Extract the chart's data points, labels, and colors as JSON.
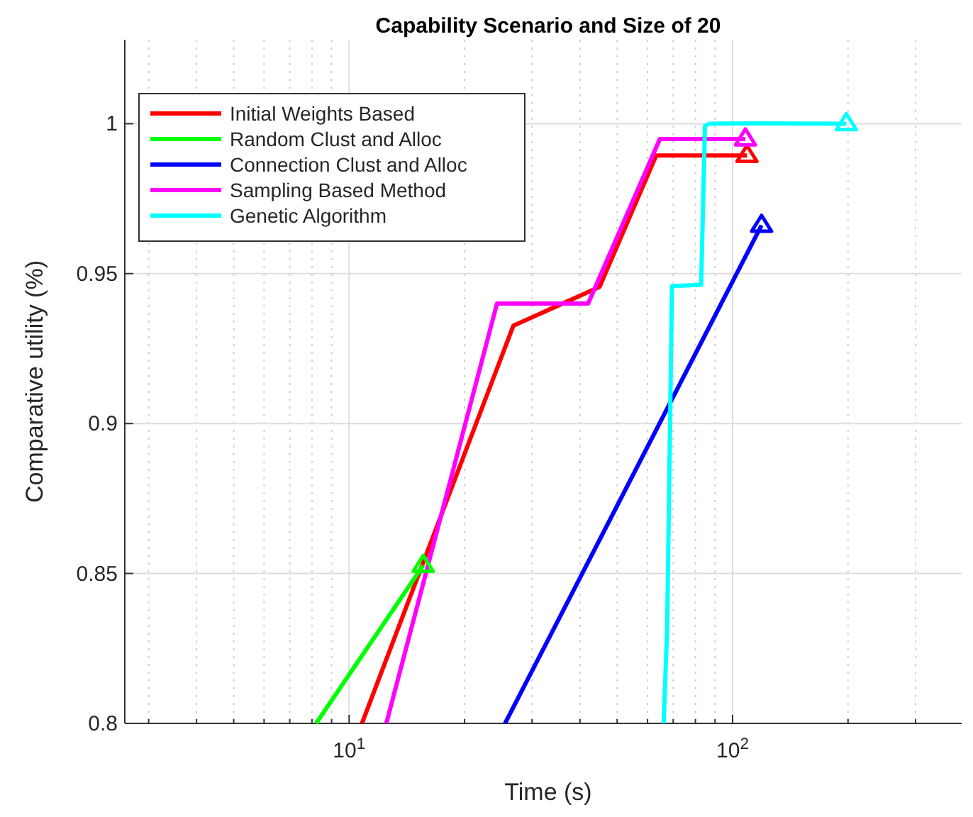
{
  "chart_data": {
    "type": "line",
    "title": "Capability Scenario and Size of 20",
    "xlabel": "Time (s)",
    "ylabel": "Comparative utility (%)",
    "log": "x",
    "xlim": [
      2.6,
      420
    ],
    "ylim": [
      0.8,
      1.028
    ],
    "xticks": [
      {
        "value": 3,
        "label": null
      },
      {
        "value": 4,
        "label": null
      },
      {
        "value": 5,
        "label": null
      },
      {
        "value": 6,
        "label": null
      },
      {
        "value": 7,
        "label": null
      },
      {
        "value": 8,
        "label": null
      },
      {
        "value": 9,
        "label": null
      },
      {
        "value": 10,
        "label": "10$^{1}$"
      },
      {
        "value": 20,
        "label": null
      },
      {
        "value": 30,
        "label": null
      },
      {
        "value": 40,
        "label": null
      },
      {
        "value": 50,
        "label": null
      },
      {
        "value": 60,
        "label": null
      },
      {
        "value": 70,
        "label": null
      },
      {
        "value": 80,
        "label": null
      },
      {
        "value": 90,
        "label": null
      },
      {
        "value": 100,
        "label": "10$^{2}$"
      },
      {
        "value": 200,
        "label": null
      },
      {
        "value": 300,
        "label": null
      },
      {
        "value": 400,
        "label": null
      }
    ],
    "yticks": [
      0.8,
      0.85,
      0.9,
      0.95,
      1
    ],
    "grid": true,
    "legend": "top left",
    "line_style": "solid",
    "series": [
      {
        "name": "Initial Weights Based",
        "color": "#ff0000",
        "marker": "none",
        "x": [
          10.8,
          26.8,
          45.0,
          63.2,
          109
        ],
        "values": [
          0.8,
          0.9326,
          0.9456,
          0.9894,
          0.9894
        ]
      },
      {
        "name": "Random Clust and Alloc",
        "color": "#00ff00",
        "marker": "none",
        "x": [
          8.2,
          15.6
        ],
        "values": [
          0.8,
          0.8527
        ]
      },
      {
        "name": "Connection Clust and Alloc",
        "color": "#0000ff",
        "marker": "none",
        "x": [
          25.5,
          119
        ],
        "values": [
          0.8,
          0.9661
        ]
      },
      {
        "name": "Sampling Based Method",
        "color": "#ff00ff",
        "marker": "none",
        "x": [
          12.5,
          24.3,
          42.0,
          64.6,
          108
        ],
        "values": [
          0.8,
          0.94,
          0.94,
          0.9949,
          0.9949
        ]
      },
      {
        "name": "Genetic Algorithm",
        "color": "#00ffff",
        "marker": "none",
        "x": [
          66.1,
          67.5,
          69.5,
          82.8,
          84.7,
          87,
          116,
          198
        ],
        "values": [
          0.8,
          0.8315,
          0.9458,
          0.9463,
          0.9993,
          1.0,
          1.0001,
          1.0
        ]
      },
      {
        "type": "scatter",
        "color": "#ff0000",
        "marker": "triangle",
        "x": [
          109
        ],
        "values": [
          0.9894
        ]
      },
      {
        "type": "scatter",
        "color": "#00ff00",
        "marker": "triangle",
        "x": [
          15.6
        ],
        "values": [
          0.8527
        ]
      },
      {
        "type": "scatter",
        "color": "#0000ff",
        "marker": "triangle",
        "x": [
          119
        ],
        "values": [
          0.9661
        ]
      },
      {
        "type": "scatter",
        "color": "#ff00ff",
        "marker": "triangle",
        "x": [
          108
        ],
        "values": [
          0.9949
        ]
      },
      {
        "type": "scatter",
        "color": "#00ffff",
        "marker": "triangle",
        "x": [
          198
        ],
        "values": [
          1.0
        ]
      }
    ]
  }
}
